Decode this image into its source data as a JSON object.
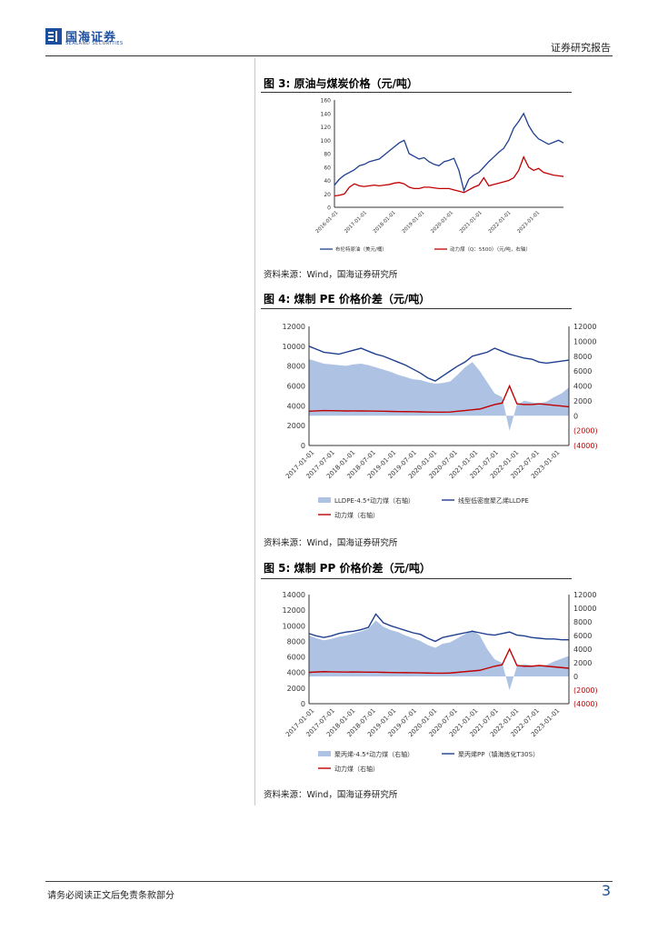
{
  "header": {
    "logo_cn": "国海证券",
    "logo_en": "SEALAND SECURITIES",
    "right_text": "证券研究报告"
  },
  "figures": [
    {
      "title": "图 3:  原油与煤炭价格（元/吨）",
      "source": "资料来源：Wind，国海证券研究所"
    },
    {
      "title": "图 4:  煤制 PE 价格价差（元/吨）",
      "source": "资料来源：Wind，国海证券研究所"
    },
    {
      "title": "图 5:  煤制 PP 价格价差（元/吨）",
      "source": "资料来源：Wind，国海证券研究所"
    }
  ],
  "footer": {
    "disclaimer": "请务必阅读正文后免责条款部分",
    "page_number": "3"
  },
  "colors": {
    "blue": "#1f3f8f",
    "red": "#c00000",
    "fill": "#aec3e3",
    "brand": "#1d4fa0"
  },
  "chart_data": [
    {
      "type": "line",
      "x_ticks": [
        "2016-01-01",
        "2017-01-01",
        "2018-01-01",
        "2019-01-01",
        "2020-01-01",
        "2021-01-01",
        "2022-01-01",
        "2023-01-01"
      ],
      "ylim": [
        0,
        160
      ],
      "y_ticks": [
        "0",
        "20",
        "40",
        "60",
        "80",
        "100",
        "120",
        "140",
        "160"
      ],
      "series": [
        {
          "name": "布伦特原油（美元/桶）",
          "color": "#1f3f8f",
          "values": [
            33,
            42,
            48,
            52,
            56,
            62,
            64,
            68,
            70,
            72,
            78,
            84,
            90,
            96,
            100,
            80,
            76,
            72,
            74,
            68,
            64,
            62,
            68,
            70,
            73,
            55,
            25,
            42,
            48,
            52,
            60,
            68,
            75,
            82,
            88,
            100,
            118,
            128,
            140,
            122,
            110,
            102,
            98,
            94,
            97,
            100,
            96
          ]
        },
        {
          "name": "动力煤（Q：5500）（元/吨，右轴）",
          "color": "#c00000",
          "values": [
            17,
            18,
            20,
            30,
            35,
            32,
            31,
            32,
            33,
            32,
            33,
            34,
            36,
            37,
            35,
            30,
            28,
            28,
            30,
            30,
            29,
            28,
            28,
            28,
            26,
            24,
            22,
            26,
            30,
            33,
            44,
            32,
            34,
            36,
            38,
            40,
            44,
            55,
            75,
            60,
            55,
            58,
            52,
            50,
            48,
            47,
            46
          ]
        }
      ],
      "legend": "bottom"
    },
    {
      "type": "area",
      "x_ticks": [
        "2017-01-01",
        "2017-07-01",
        "2018-01-01",
        "2018-07-01",
        "2019-01-01",
        "2019-07-01",
        "2020-01-01",
        "2020-07-01",
        "2021-01-01",
        "2021-07-01",
        "2022-01-01",
        "2022-07-01",
        "2023-01-01"
      ],
      "left_ylim": [
        0,
        12000
      ],
      "left_ticks": [
        "0",
        "2000",
        "4000",
        "6000",
        "8000",
        "10000",
        "12000"
      ],
      "right_ylim": [
        -4000,
        12000
      ],
      "right_ticks": [
        "(4000)",
        "(2000)",
        "0",
        "2000",
        "4000",
        "6000",
        "8000",
        "10000",
        "12000"
      ],
      "series": [
        {
          "name": "LLDPE-4.5*动力煤（右轴）",
          "axis": "right",
          "color": "#aec3e3",
          "values": [
            7600,
            7300,
            7000,
            6900,
            6800,
            6700,
            6900,
            7000,
            6800,
            6500,
            6200,
            5900,
            5500,
            5200,
            4900,
            4800,
            4500,
            4300,
            4400,
            4600,
            5500,
            6500,
            7200,
            6000,
            4500,
            3000,
            2500,
            -2000,
            1500,
            2000,
            1800,
            1700,
            1900,
            2500,
            3000,
            3800
          ]
        },
        {
          "name": "线型低密度聚乙烯LLDPE",
          "axis": "left",
          "color": "#1f3f8f",
          "values": [
            10000,
            9700,
            9400,
            9300,
            9200,
            9400,
            9600,
            9800,
            9500,
            9200,
            9000,
            8700,
            8400,
            8100,
            7700,
            7300,
            6800,
            6500,
            7000,
            7500,
            8000,
            8400,
            9000,
            9200,
            9400,
            9800,
            9500,
            9200,
            9000,
            8800,
            8700,
            8400,
            8300,
            8400,
            8500,
            8600
          ]
        },
        {
          "name": "动力煤（右轴）",
          "axis": "right",
          "color": "#c00000",
          "values": [
            600,
            650,
            700,
            680,
            660,
            640,
            650,
            640,
            630,
            620,
            600,
            580,
            560,
            550,
            540,
            520,
            500,
            480,
            480,
            500,
            600,
            700,
            800,
            900,
            1200,
            1500,
            1700,
            4000,
            1600,
            1500,
            1500,
            1600,
            1500,
            1400,
            1300,
            1200
          ]
        }
      ],
      "legend": "bottom"
    },
    {
      "type": "area",
      "x_ticks": [
        "2017-01-01",
        "2017-07-01",
        "2018-01-01",
        "2018-07-01",
        "2019-01-01",
        "2019-07-01",
        "2020-01-01",
        "2020-07-01",
        "2021-01-01",
        "2021-07-01",
        "2022-01-01",
        "2022-07-01",
        "2023-01-01"
      ],
      "left_ylim": [
        0,
        14000
      ],
      "left_ticks": [
        "0",
        "2000",
        "4000",
        "6000",
        "8000",
        "10000",
        "12000",
        "14000"
      ],
      "right_ylim": [
        -4000,
        12000
      ],
      "right_ticks": [
        "(4000)",
        "(2000)",
        "0",
        "2000",
        "4000",
        "6000",
        "8000",
        "10000",
        "12000"
      ],
      "series": [
        {
          "name": "聚丙烯-4.5*动力煤（右轴）",
          "axis": "right",
          "color": "#aec3e3",
          "values": [
            6000,
            5600,
            5300,
            5500,
            5800,
            6000,
            6300,
            6600,
            7000,
            8200,
            7300,
            6800,
            6500,
            6000,
            5600,
            5200,
            4600,
            4200,
            4800,
            5000,
            5600,
            6200,
            6800,
            6000,
            4000,
            2500,
            2000,
            -2000,
            1500,
            1800,
            1600,
            1500,
            1700,
            2200,
            2600,
            3000
          ]
        },
        {
          "name": "聚丙烯PP（镇海炼化T30S）",
          "axis": "left",
          "color": "#1f3f8f",
          "values": [
            9000,
            8700,
            8500,
            8700,
            9000,
            9200,
            9300,
            9500,
            9800,
            11500,
            10400,
            10000,
            9700,
            9400,
            9100,
            8900,
            8400,
            8000,
            8500,
            8700,
            8900,
            9100,
            9300,
            9100,
            8900,
            8800,
            9000,
            9200,
            8800,
            8700,
            8500,
            8400,
            8300,
            8300,
            8200,
            8200
          ]
        },
        {
          "name": "动力煤（右轴）",
          "axis": "right",
          "color": "#c00000",
          "values": [
            600,
            650,
            700,
            680,
            660,
            640,
            650,
            640,
            630,
            620,
            600,
            580,
            560,
            550,
            540,
            520,
            500,
            480,
            480,
            500,
            600,
            700,
            800,
            900,
            1200,
            1500,
            1700,
            4000,
            1600,
            1500,
            1500,
            1600,
            1500,
            1400,
            1300,
            1200
          ]
        }
      ],
      "legend": "bottom"
    }
  ]
}
